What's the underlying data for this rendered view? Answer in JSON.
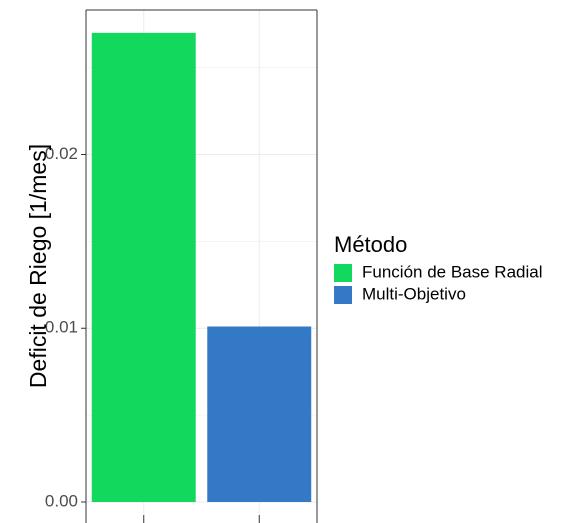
{
  "chart_data": {
    "type": "bar",
    "categories": [
      "Función de Base Radial",
      "Multi-Objetivo"
    ],
    "values": [
      0.027,
      0.0101
    ],
    "colors": [
      "#12d85e",
      "#3479c5"
    ],
    "title": "",
    "xlabel": "",
    "ylabel": "Deficit de Riego [1/mes]",
    "ylim": [
      0,
      0.0285
    ],
    "yticks": [
      {
        "value": 0.0,
        "label": "0.00"
      },
      {
        "value": 0.01,
        "label": "0.01"
      },
      {
        "value": 0.02,
        "label": "0.02"
      }
    ],
    "yminor": [
      0.005,
      0.015,
      0.025
    ],
    "grid": true,
    "legend": {
      "title": "Método",
      "placement": "right",
      "entries": [
        "Función de Base Radial",
        "Multi-Objetivo"
      ]
    }
  }
}
